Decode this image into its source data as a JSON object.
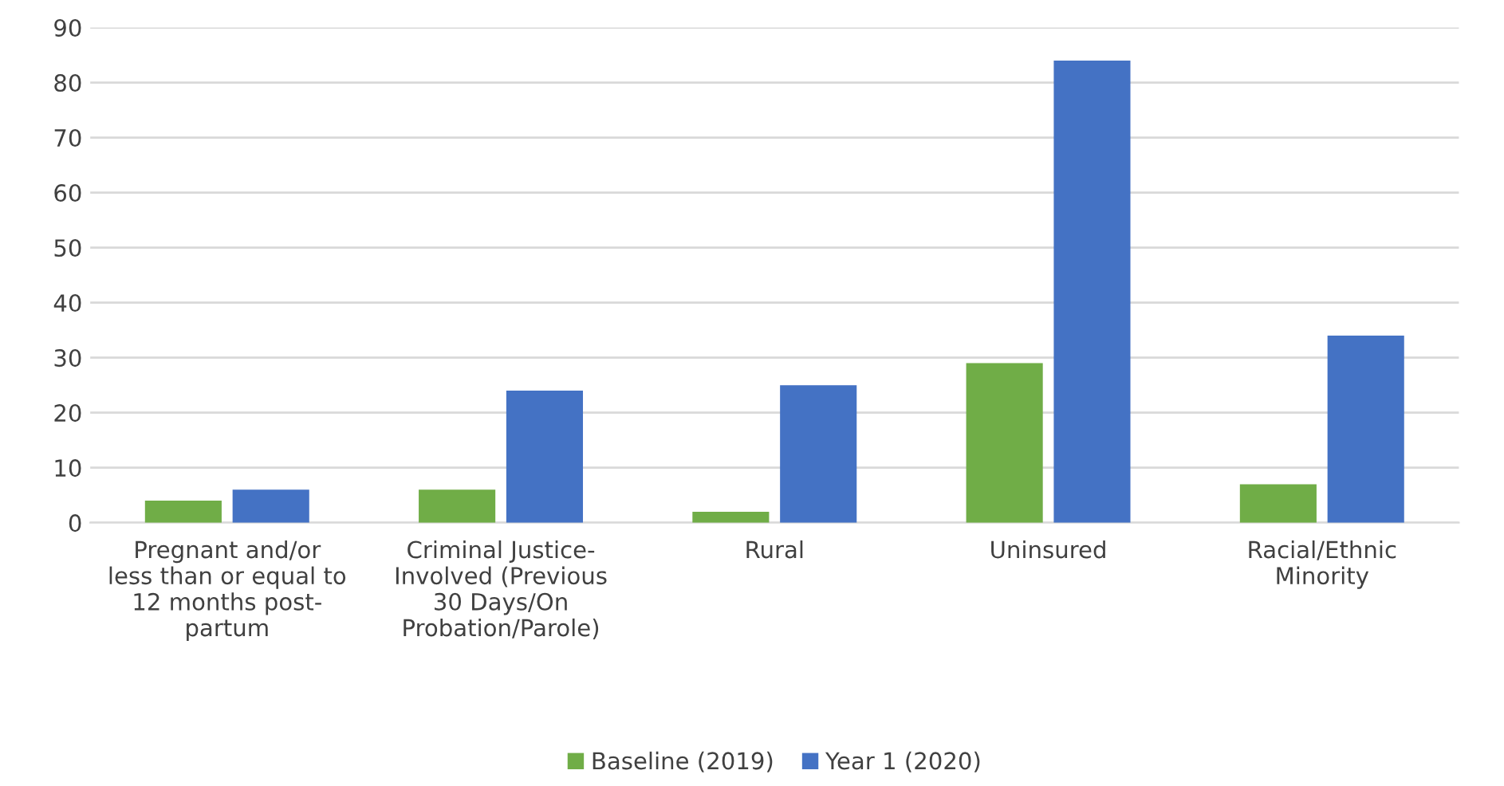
{
  "chart_data": {
    "type": "bar",
    "categories": [
      "Pregnant and/or\nless than or equal to\n12 months post-\npartum",
      "Criminal Justice-\nInvolved (Previous\n30 Days/On\nProbation/Parole)",
      "Rural",
      "Uninsured",
      "Racial/Ethnic\nMinority"
    ],
    "series": [
      {
        "name": "Baseline (2019)",
        "color": "#70ad47",
        "values": [
          4,
          6,
          2,
          29,
          7
        ]
      },
      {
        "name": "Year 1 (2020)",
        "color": "#4472c4",
        "values": [
          6,
          24,
          25,
          84,
          34
        ]
      }
    ],
    "ylim": [
      0,
      90
    ],
    "yticks": [
      0,
      10,
      20,
      30,
      40,
      50,
      60,
      70,
      80,
      90
    ],
    "grid": "y",
    "legend": "bottom"
  }
}
